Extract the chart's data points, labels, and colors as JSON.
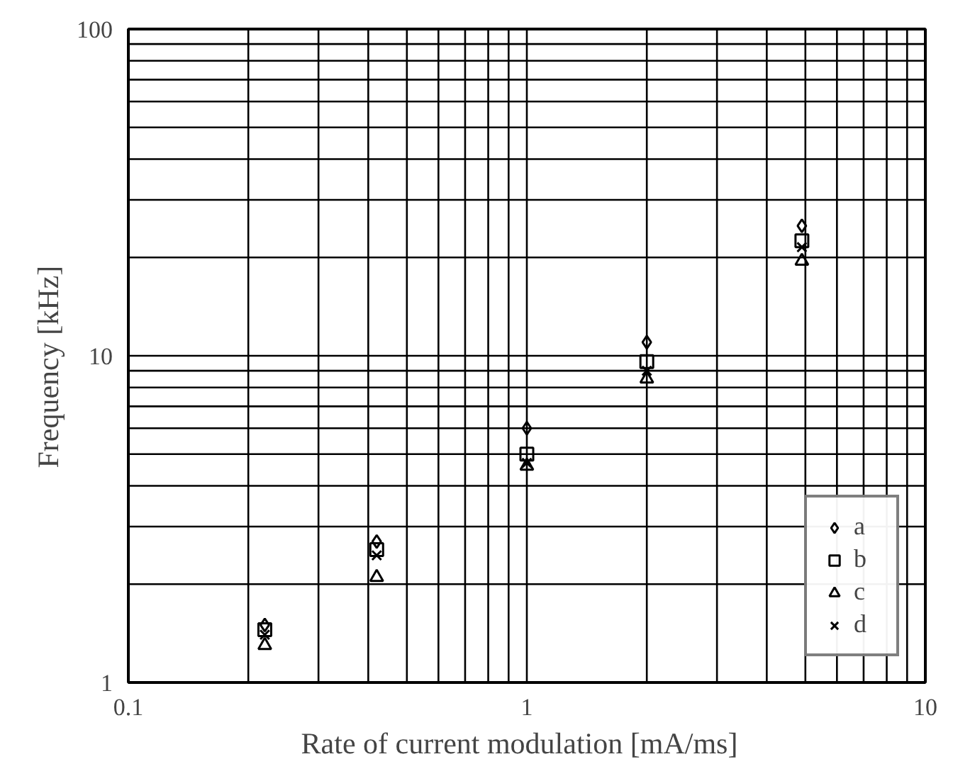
{
  "chart_data": {
    "type": "scatter",
    "xlabel": "Rate of current modulation   [mA/ms]",
    "ylabel": "Frequency    [kHz]",
    "log": "xy",
    "xlim": [
      0.1,
      10
    ],
    "ylim": [
      1,
      100
    ],
    "xticks": [
      0.1,
      {
        "value": 0.2,
        "label": null
      },
      {
        "value": 0.3,
        "label": null
      },
      {
        "value": 0.4,
        "label": null
      },
      {
        "value": 0.5,
        "label": null
      },
      {
        "value": 0.6,
        "label": null
      },
      {
        "value": 0.7,
        "label": null
      },
      {
        "value": 0.8,
        "label": null
      },
      {
        "value": 0.9,
        "label": null
      },
      1,
      {
        "value": 2,
        "label": null
      },
      {
        "value": 3,
        "label": null
      },
      {
        "value": 4,
        "label": null
      },
      {
        "value": 5,
        "label": null
      },
      {
        "value": 6,
        "label": null
      },
      {
        "value": 7,
        "label": null
      },
      {
        "value": 8,
        "label": null
      },
      {
        "value": 9,
        "label": null
      },
      10
    ],
    "yticks": [
      1,
      {
        "value": 2,
        "label": null
      },
      {
        "value": 3,
        "label": null
      },
      {
        "value": 4,
        "label": null
      },
      {
        "value": 5,
        "label": null
      },
      {
        "value": 6,
        "label": null
      },
      {
        "value": 7,
        "label": null
      },
      {
        "value": 8,
        "label": null
      },
      {
        "value": 9,
        "label": null
      },
      10,
      {
        "value": 20,
        "label": null
      },
      {
        "value": 30,
        "label": null
      },
      {
        "value": 40,
        "label": null
      },
      {
        "value": 50,
        "label": null
      },
      {
        "value": 60,
        "label": null
      },
      {
        "value": 70,
        "label": null
      },
      {
        "value": 80,
        "label": null
      },
      {
        "value": 90,
        "label": null
      },
      100
    ],
    "grid": true,
    "legend": "bottom right",
    "x": [
      0.22,
      0.42,
      1.0,
      2.0,
      4.9
    ],
    "series": [
      {
        "name": "a",
        "color": "#000000",
        "marker": "diamond",
        "values": [
          1.5,
          2.7,
          6.0,
          11,
          25
        ]
      },
      {
        "name": "b",
        "color": "#000000",
        "marker": "square",
        "values": [
          1.45,
          2.55,
          5.0,
          9.6,
          22.5
        ]
      },
      {
        "name": "c",
        "color": "#000000",
        "marker": "triangle",
        "values": [
          1.3,
          2.1,
          4.6,
          8.5,
          19.5
        ]
      },
      {
        "name": "d",
        "color": "#000000",
        "marker": "cross",
        "values": [
          1.4,
          2.45,
          4.7,
          9.0,
          21.5
        ]
      }
    ]
  }
}
